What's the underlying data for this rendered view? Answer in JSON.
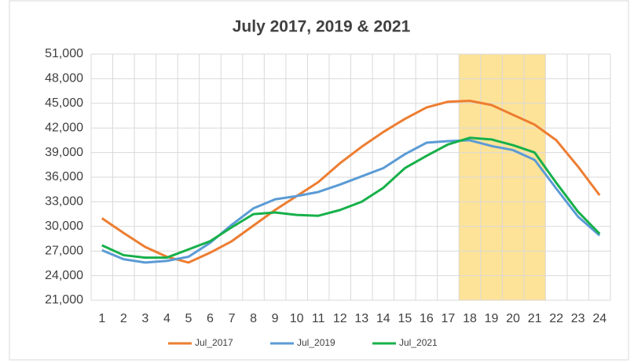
{
  "chart_data": {
    "type": "line",
    "title": "July 2017, 2019 & 2021",
    "categories": [
      "1",
      "2",
      "3",
      "4",
      "5",
      "6",
      "7",
      "8",
      "9",
      "10",
      "11",
      "12",
      "13",
      "14",
      "15",
      "16",
      "17",
      "18",
      "19",
      "20",
      "21",
      "22",
      "23",
      "24"
    ],
    "series": [
      {
        "name": "Jul_2017",
        "color": "#ed7d31",
        "values": [
          31000,
          29200,
          27500,
          26300,
          25600,
          26800,
          28200,
          30100,
          32000,
          33700,
          35400,
          37700,
          39700,
          41500,
          43100,
          44500,
          45200,
          45300,
          44800,
          43600,
          42400,
          40500,
          37300,
          33800
        ]
      },
      {
        "name": "Jul_2019",
        "color": "#5b9bd5",
        "values": [
          27100,
          26000,
          25600,
          25800,
          26300,
          28000,
          30200,
          32200,
          33300,
          33700,
          34200,
          35100,
          36100,
          37100,
          38800,
          40200,
          40400,
          40500,
          39800,
          39300,
          38100,
          34600,
          31200,
          28900
        ]
      },
      {
        "name": "Jul_2021",
        "color": "#17b04a",
        "values": [
          27700,
          26500,
          26200,
          26200,
          27200,
          28200,
          29900,
          31500,
          31700,
          31400,
          31300,
          32000,
          33000,
          34700,
          37100,
          38600,
          40000,
          40800,
          40600,
          39900,
          39000,
          35300,
          31800,
          29100
        ]
      }
    ],
    "ylim": [
      21000,
      51000
    ],
    "yticks": [
      {
        "value": 21000,
        "label": "21,000"
      },
      {
        "value": 24000,
        "label": "24,000"
      },
      {
        "value": 27000,
        "label": "27,000"
      },
      {
        "value": 30000,
        "label": "30,000"
      },
      {
        "value": 33000,
        "label": "33,000"
      },
      {
        "value": 36000,
        "label": "36,000"
      },
      {
        "value": 39000,
        "label": "39,000"
      },
      {
        "value": 42000,
        "label": "42,000"
      },
      {
        "value": 45000,
        "label": "45,000"
      },
      {
        "value": 48000,
        "label": "48,000"
      },
      {
        "value": 51000,
        "label": "51,000"
      }
    ],
    "grid": true,
    "legend": "bottom",
    "highlight": {
      "from": "18",
      "to": "21",
      "color": "#fde398"
    }
  }
}
